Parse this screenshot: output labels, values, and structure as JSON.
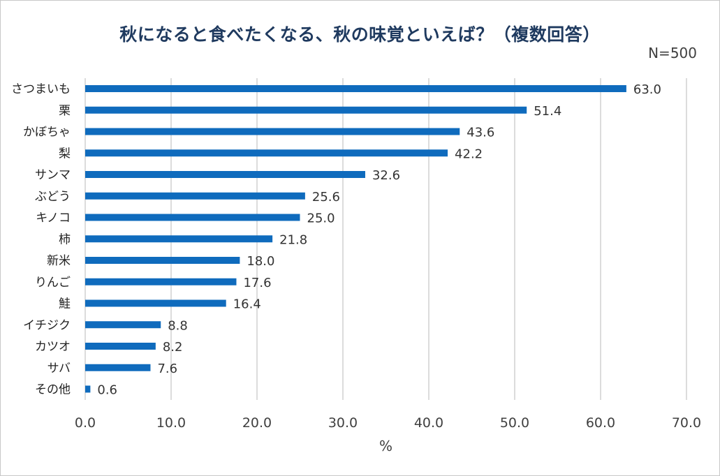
{
  "chart_data": {
    "type": "bar",
    "orientation": "horizontal",
    "title": "秋になると食べたくなる、秋の味覚といえば？（複数回答）",
    "note": "N=500",
    "xlabel": "%",
    "ylabel": "",
    "xlim": [
      0,
      70
    ],
    "xticks": [
      0,
      10,
      20,
      30,
      40,
      50,
      60,
      70
    ],
    "xtick_labels": [
      "0.0",
      "10.0",
      "20.0",
      "30.0",
      "40.0",
      "50.0",
      "60.0",
      "70.0"
    ],
    "grid": "vertical",
    "bar_color": "#0f6bbd",
    "grid_color": "#d0d0d0",
    "categories": [
      "さつまいも",
      "栗",
      "かぼちゃ",
      "梨",
      "サンマ",
      "ぶどう",
      "キノコ",
      "柿",
      "新米",
      "りんご",
      "鮭",
      "イチジク",
      "カツオ",
      "サバ",
      "その他"
    ],
    "values": [
      63.0,
      51.4,
      43.6,
      42.2,
      32.6,
      25.6,
      25.0,
      21.8,
      18.0,
      17.6,
      16.4,
      8.8,
      8.2,
      7.6,
      0.6
    ],
    "value_labels": [
      "63.0",
      "51.4",
      "43.6",
      "42.2",
      "32.6",
      "25.6",
      "25.0",
      "21.8",
      "18.0",
      "17.6",
      "16.4",
      "8.8",
      "8.2",
      "7.6",
      "0.6"
    ]
  }
}
